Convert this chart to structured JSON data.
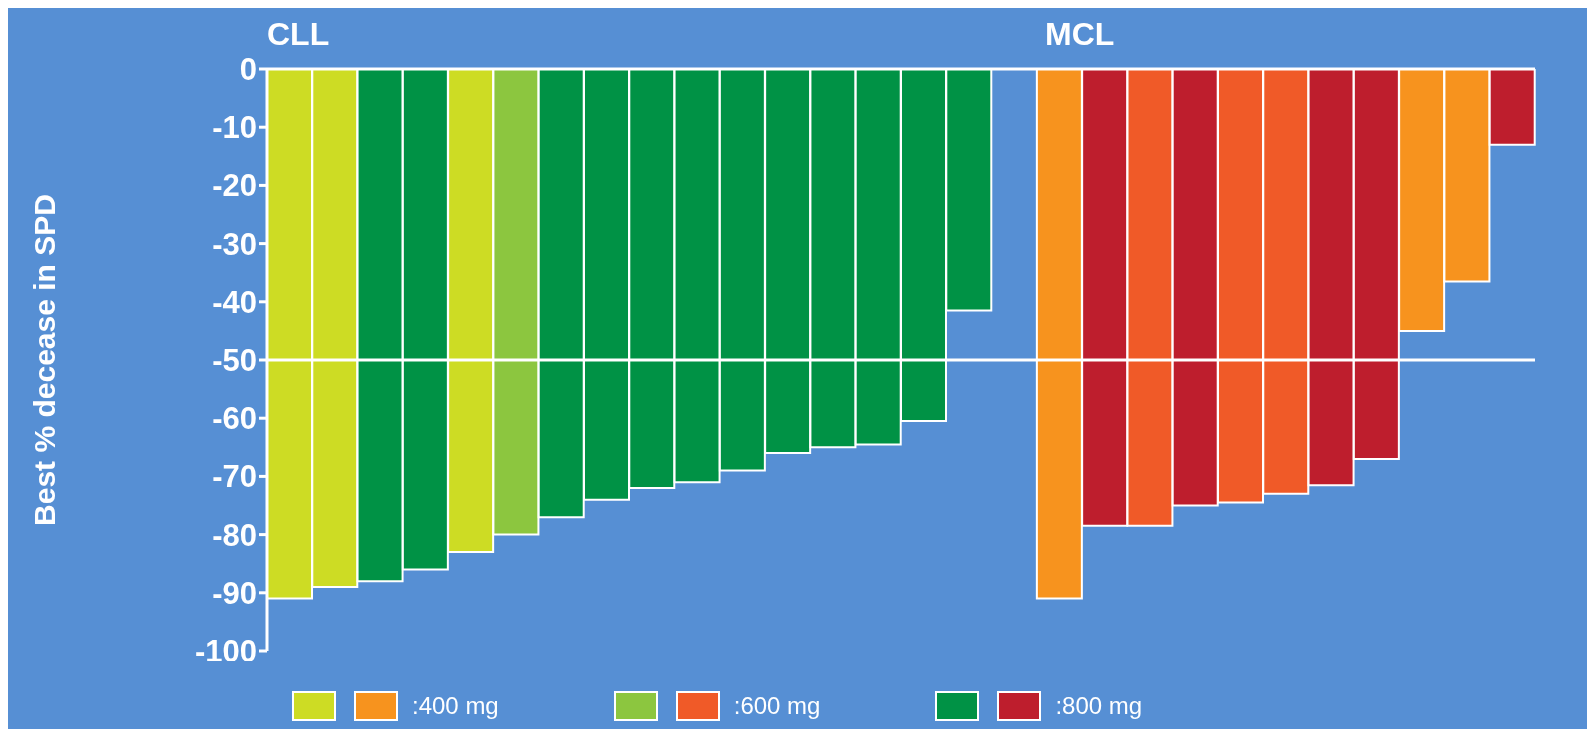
{
  "chart_data": {
    "type": "bar",
    "ylabel": "Best % decease in SPD",
    "annotations": [
      "CLL",
      "MCL"
    ],
    "categories": [
      null,
      null,
      null,
      null,
      null,
      null,
      null,
      null,
      null,
      null,
      null,
      null,
      null,
      null,
      null,
      null,
      null,
      null,
      null,
      null,
      null,
      null,
      null,
      null,
      null,
      null,
      null,
      null
    ],
    "series": [
      {
        "color": "#cddc24",
        "values": [
          -91,
          -89,
          null,
          null,
          -83,
          null,
          null,
          null,
          null,
          null,
          null,
          null,
          null,
          null,
          null,
          null,
          null,
          null,
          null,
          null,
          null,
          null,
          null,
          null,
          null,
          null,
          null,
          null
        ]
      },
      {
        "name": ":400 mg",
        "color": "#f7931e",
        "values": [
          null,
          null,
          null,
          null,
          null,
          null,
          null,
          null,
          null,
          null,
          null,
          null,
          null,
          null,
          null,
          null,
          null,
          -91,
          null,
          null,
          null,
          null,
          null,
          null,
          null,
          -45,
          -36.5,
          null
        ]
      },
      {
        "color": "#8cc63f",
        "values": [
          null,
          null,
          null,
          null,
          null,
          -80,
          null,
          null,
          null,
          null,
          null,
          null,
          null,
          null,
          null,
          null,
          null,
          null,
          null,
          null,
          null,
          null,
          null,
          null,
          null,
          null,
          null,
          null
        ]
      },
      {
        "name": ":600 mg",
        "color": "#f05a28",
        "values": [
          null,
          null,
          null,
          null,
          null,
          null,
          null,
          null,
          null,
          null,
          null,
          null,
          null,
          null,
          null,
          null,
          null,
          null,
          null,
          -78.5,
          null,
          -74.5,
          -73,
          null,
          null,
          null,
          null,
          null
        ]
      },
      {
        "color": "#009245",
        "values": [
          null,
          null,
          -88,
          -86,
          null,
          null,
          -77,
          -74,
          -72,
          -71,
          -69,
          -66,
          -65,
          -64.5,
          -60.5,
          -41.5,
          null,
          null,
          null,
          null,
          null,
          null,
          null,
          null,
          null,
          null,
          null,
          null
        ]
      },
      {
        "name": ":800 mg",
        "color": "#be1e2d",
        "values": [
          null,
          null,
          null,
          null,
          null,
          null,
          null,
          null,
          null,
          null,
          null,
          null,
          null,
          null,
          null,
          null,
          null,
          null,
          -78.5,
          null,
          -75,
          null,
          null,
          -71.5,
          -67,
          null,
          null,
          -13
        ]
      }
    ],
    "ylim": [
      -100,
      0
    ],
    "yticks": [
      0,
      -10,
      -20,
      -30,
      -40,
      -50,
      -60,
      -70,
      -80,
      -90,
      -100
    ],
    "ref_lines": [
      {
        "axis": "y",
        "value": -50,
        "color": "#ffffff"
      }
    ],
    "grid": false,
    "legend": "bottom"
  }
}
